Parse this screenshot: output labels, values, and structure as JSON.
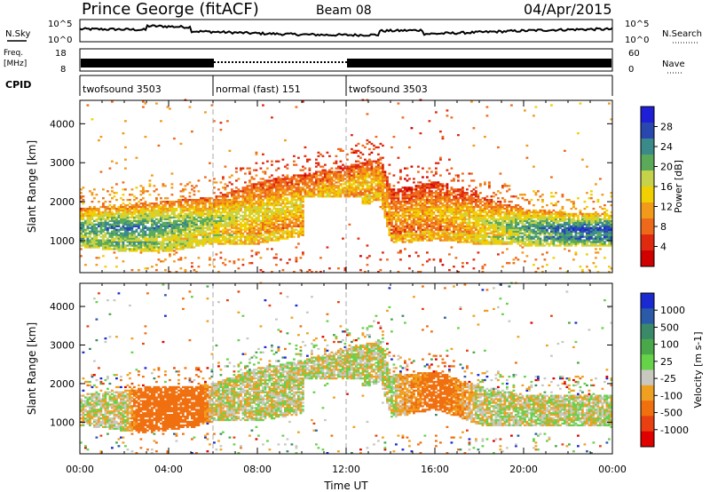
{
  "header": {
    "station": "Prince George (fitACF)",
    "beam": "Beam 08",
    "date": "04/Apr/2015"
  },
  "top_panels": {
    "nsky_label": "N.Sky",
    "nsky_ticks": [
      "10^5",
      "10^0"
    ],
    "nsearch_label": "N.Search",
    "freq_label_1": "Freq.",
    "freq_label_2": "[MHz]",
    "freq_ticks": [
      "18",
      "8"
    ],
    "nave_ticks": [
      "60",
      "0"
    ],
    "nave_label": "Nave",
    "cpid_label": "CPID"
  },
  "cpid_segments": [
    {
      "label": "twofsound 3503",
      "start": 0,
      "end": 6
    },
    {
      "label": "normal (fast) 151",
      "start": 6,
      "end": 12
    },
    {
      "label": "twofsound 3503",
      "start": 12,
      "end": 24
    }
  ],
  "colors": {
    "power": [
      "#1f1fd8",
      "#2848b0",
      "#3a8a8a",
      "#5aaa5a",
      "#c6d24a",
      "#f0d000",
      "#f29a1a",
      "#ee6a1a",
      "#e02a10",
      "#d00000"
    ],
    "velocity": [
      "#1a2ad0",
      "#2a5aa8",
      "#3a8a6a",
      "#4aa84a",
      "#66d24a",
      "#c8c8c0",
      "#f0a020",
      "#f07010",
      "#e84010",
      "#e00000"
    ]
  },
  "chart_data": [
    {
      "type": "heatmap",
      "name": "power",
      "title": "Prince George (fitACF)",
      "xlabel": "Time UT",
      "ylabel": "Slant Range [km]",
      "xlim": [
        0,
        24
      ],
      "ylim": [
        180,
        4600
      ],
      "xticks": [
        "00:00",
        "04:00",
        "08:00",
        "12:00",
        "16:00",
        "20:00",
        "00:00"
      ],
      "yticks": [
        1000,
        2000,
        3000,
        4000
      ],
      "colorbar_label": "Power [dB]",
      "colorbar_ticks": [
        "28",
        "24",
        "20",
        "16",
        "12",
        "8",
        "4"
      ],
      "colorbar_range": [
        0,
        30
      ],
      "bands": [
        {
          "t": 0,
          "lo": 820,
          "hi": 1800,
          "level": 20
        },
        {
          "t": 2,
          "lo": 700,
          "hi": 1900,
          "level": 22
        },
        {
          "t": 4,
          "lo": 700,
          "hi": 2000,
          "level": 20
        },
        {
          "t": 6,
          "lo": 900,
          "hi": 2100,
          "level": 16
        },
        {
          "t": 8,
          "lo": 900,
          "hi": 2500,
          "level": 14
        },
        {
          "t": 10,
          "lo": 1100,
          "hi": 2700,
          "level": 13
        },
        {
          "t": 12,
          "lo": 1800,
          "hi": 2900,
          "level": 12
        },
        {
          "t": 13.5,
          "lo": 2000,
          "hi": 3100,
          "level": 12
        },
        {
          "t": 14,
          "lo": 900,
          "hi": 2300,
          "level": 10
        },
        {
          "t": 16,
          "lo": 1000,
          "hi": 2500,
          "level": 11
        },
        {
          "t": 18,
          "lo": 880,
          "hi": 2100,
          "level": 14
        },
        {
          "t": 20,
          "lo": 850,
          "hi": 1800,
          "level": 20
        },
        {
          "t": 22,
          "lo": 850,
          "hi": 1700,
          "level": 24
        },
        {
          "t": 24,
          "lo": 850,
          "hi": 1700,
          "level": 24
        }
      ],
      "gaps": [
        {
          "t0": 10,
          "t1": 12.6,
          "lo": 300,
          "hi": 2100
        }
      ]
    },
    {
      "type": "heatmap",
      "name": "velocity",
      "xlabel": "Time UT",
      "ylabel": "Slant Range [km]",
      "xlim": [
        0,
        24
      ],
      "ylim": [
        180,
        4600
      ],
      "xticks": [
        "00:00",
        "04:00",
        "08:00",
        "12:00",
        "16:00",
        "20:00",
        "00:00"
      ],
      "yticks": [
        1000,
        2000,
        3000,
        4000
      ],
      "colorbar_label": "Velocity [m s-1]",
      "colorbar_ticks": [
        "1000",
        "500",
        "100",
        "25",
        "-25",
        "-100",
        "-500",
        "-1000"
      ],
      "bands": [
        {
          "t": 0,
          "lo": 900,
          "hi": 1700,
          "level": 0
        },
        {
          "t": 2,
          "lo": 750,
          "hi": 1800,
          "level": 0
        },
        {
          "t": 3,
          "lo": 700,
          "hi": 1900,
          "level": -300
        },
        {
          "t": 5,
          "lo": 850,
          "hi": 1900,
          "level": -300
        },
        {
          "t": 6,
          "lo": 1000,
          "hi": 2000,
          "level": 0
        },
        {
          "t": 8,
          "lo": 1000,
          "hi": 2400,
          "level": 0
        },
        {
          "t": 10,
          "lo": 1200,
          "hi": 2600,
          "level": 0
        },
        {
          "t": 12,
          "lo": 1800,
          "hi": 2900,
          "level": 0
        },
        {
          "t": 13.5,
          "lo": 2000,
          "hi": 3100,
          "level": 0
        },
        {
          "t": 14,
          "lo": 1100,
          "hi": 2200,
          "level": 0
        },
        {
          "t": 16,
          "lo": 1300,
          "hi": 2300,
          "level": -200
        },
        {
          "t": 18,
          "lo": 900,
          "hi": 1900,
          "level": 0
        },
        {
          "t": 20,
          "lo": 900,
          "hi": 1700,
          "level": 0
        },
        {
          "t": 24,
          "lo": 900,
          "hi": 1700,
          "level": 0
        }
      ],
      "gaps": [
        {
          "t0": 10,
          "t1": 12.6,
          "lo": 300,
          "hi": 2100
        }
      ]
    }
  ]
}
